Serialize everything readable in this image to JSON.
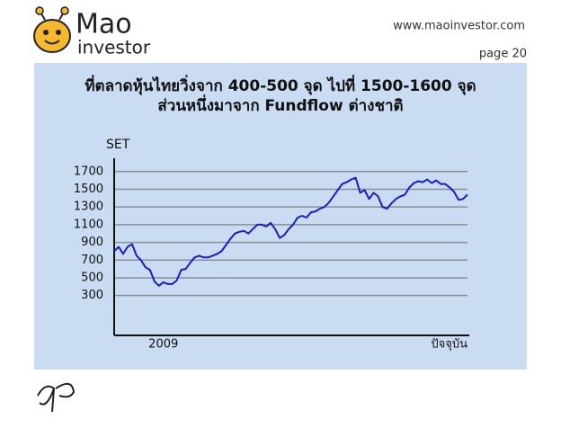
{
  "header": {
    "logo_main": "Mao",
    "logo_sub": "investor",
    "website": "www.maoinvestor.com",
    "page": "page 20"
  },
  "chart_data": {
    "type": "line",
    "title": "ที่ตลาดหุ้นไทยวิ่งจาก 400-500 จุด ไปที่ 1500-1600 จุด",
    "subtitle": "ส่วนหนึ่งมาจาก Fundflow ต่างชาติ",
    "y_label": "SET",
    "categories": [
      null,
      null,
      null,
      null,
      null,
      null,
      null,
      null,
      null,
      null,
      null,
      "2009",
      null,
      null,
      null,
      null,
      null,
      null,
      null,
      null,
      null,
      null,
      null,
      null,
      null,
      null,
      null,
      null,
      null,
      null,
      null,
      null,
      null,
      null,
      null,
      null,
      null,
      null,
      null,
      null,
      null,
      null,
      null,
      null,
      null,
      null,
      null,
      null,
      null,
      null,
      null,
      null,
      null,
      null,
      null,
      null,
      null,
      null,
      null,
      null,
      null,
      null,
      null,
      null,
      null,
      null,
      null,
      null,
      null,
      null,
      null,
      null,
      null,
      null,
      null,
      null,
      null,
      null,
      null,
      "ปัจจุบัน"
    ],
    "values": [
      800,
      850,
      770,
      850,
      880,
      750,
      700,
      620,
      590,
      460,
      410,
      450,
      430,
      430,
      470,
      590,
      600,
      670,
      730,
      750,
      730,
      730,
      750,
      770,
      800,
      870,
      940,
      1000,
      1020,
      1030,
      1000,
      1050,
      1100,
      1100,
      1080,
      1120,
      1050,
      950,
      980,
      1050,
      1100,
      1180,
      1200,
      1180,
      1240,
      1250,
      1280,
      1300,
      1350,
      1420,
      1490,
      1560,
      1580,
      1610,
      1630,
      1460,
      1490,
      1390,
      1460,
      1420,
      1300,
      1280,
      1340,
      1390,
      1420,
      1440,
      1520,
      1570,
      1590,
      1580,
      1610,
      1570,
      1600,
      1560,
      1560,
      1520,
      1470,
      1380,
      1390,
      1440
    ],
    "color": "#1c1cc8",
    "ylim": [
      -150,
      1850
    ],
    "yticks": [
      300,
      500,
      700,
      900,
      1100,
      1300,
      1500,
      1700
    ],
    "grid": true
  }
}
